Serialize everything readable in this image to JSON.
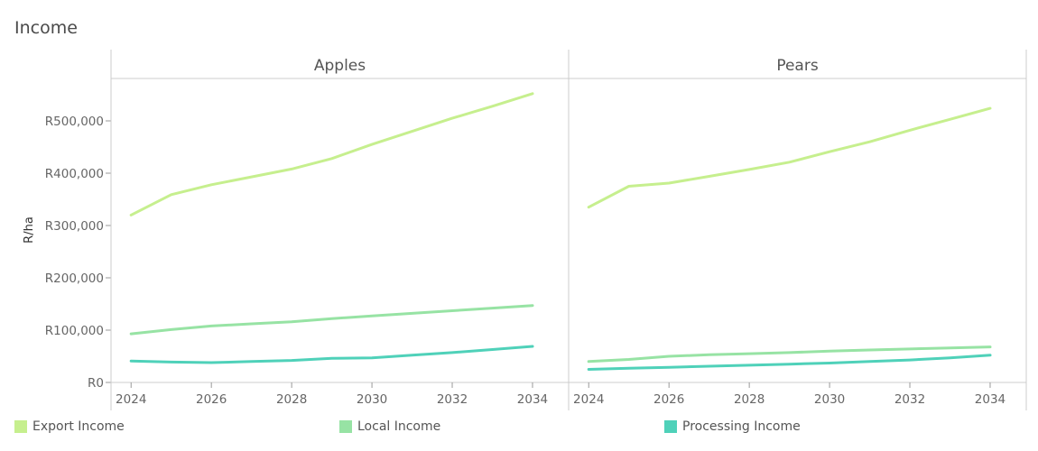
{
  "title": "Income",
  "chart_data": {
    "type": "line",
    "ylabel": "R/ha",
    "ylim": [
      0,
      580000
    ],
    "yticks": [
      0,
      100000,
      200000,
      300000,
      400000,
      500000
    ],
    "ytick_labels": [
      "R0",
      "R100,000",
      "R200,000",
      "R300,000",
      "R400,000",
      "R500,000"
    ],
    "xlim": [
      2023.5,
      2034.9
    ],
    "xticks": [
      2024,
      2026,
      2028,
      2030,
      2032,
      2034
    ],
    "xtick_labels": [
      "2024",
      "2026",
      "2028",
      "2030",
      "2032",
      "2034"
    ],
    "x": [
      2024,
      2025,
      2026,
      2027,
      2028,
      2029,
      2030,
      2031,
      2032,
      2033,
      2034
    ],
    "panels": [
      {
        "name": "Apples",
        "series": [
          {
            "name": "Export Income",
            "values": [
              320000,
              359000,
              378000,
              393000,
              408000,
              428000,
              455000,
              480000,
              505000,
              528000,
              552000
            ]
          },
          {
            "name": "Local Income",
            "values": [
              93000,
              101000,
              108000,
              112000,
              116000,
              122000,
              127000,
              132000,
              137000,
              142000,
              147000
            ]
          },
          {
            "name": "Processing Income",
            "values": [
              41000,
              39000,
              38000,
              40000,
              42000,
              46000,
              47000,
              52000,
              57000,
              63000,
              69000
            ]
          }
        ]
      },
      {
        "name": "Pears",
        "series": [
          {
            "name": "Export Income",
            "values": [
              335000,
              375000,
              381000,
              394000,
              407000,
              421000,
              441000,
              460000,
              482000,
              503000,
              524000
            ]
          },
          {
            "name": "Local Income",
            "values": [
              40000,
              44000,
              50000,
              53000,
              55000,
              57000,
              60000,
              62000,
              64000,
              66000,
              68000
            ]
          },
          {
            "name": "Processing Income",
            "values": [
              25000,
              27000,
              29000,
              31000,
              33000,
              35000,
              37000,
              40000,
              43000,
              47000,
              52000
            ]
          }
        ]
      }
    ],
    "legend": [
      {
        "name": "Export Income",
        "color": "#c6ef8e"
      },
      {
        "name": "Local Income",
        "color": "#97e3a4"
      },
      {
        "name": "Processing Income",
        "color": "#4fd1b9"
      }
    ]
  }
}
